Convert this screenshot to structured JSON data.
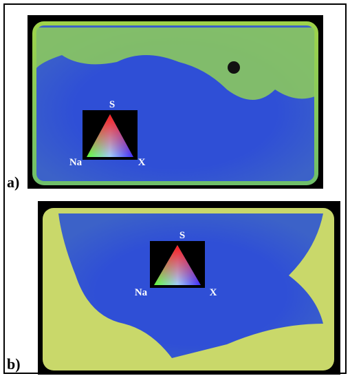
{
  "panels": [
    {
      "label": "a)",
      "legend": {
        "top": "S",
        "left": "Na",
        "right": "X"
      }
    },
    {
      "label": "b)",
      "legend": {
        "top": "S",
        "left": "Na",
        "right": "X"
      }
    }
  ]
}
